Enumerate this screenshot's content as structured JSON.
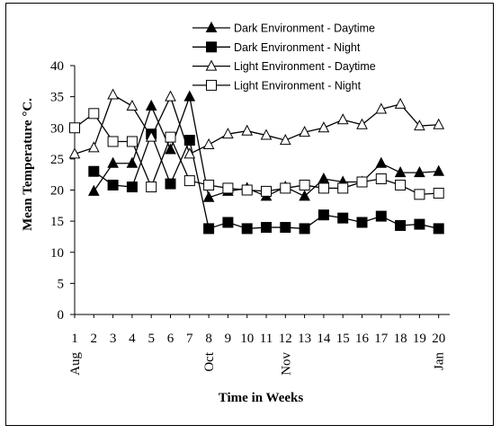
{
  "chart_data": {
    "type": "line",
    "xlabel": "Time in Weeks",
    "ylabel": "Mean Temperature °C.",
    "ylim": [
      0,
      40
    ],
    "yticks": [
      "0",
      "5",
      "10",
      "15",
      "20",
      "25",
      "30",
      "35",
      "40"
    ],
    "x": [
      1,
      2,
      3,
      4,
      5,
      6,
      7,
      8,
      9,
      10,
      11,
      12,
      13,
      14,
      15,
      16,
      17,
      18,
      19,
      20
    ],
    "xtick_labels": [
      "1",
      "2",
      "3",
      "4",
      "5",
      "6",
      "7",
      "8",
      "9",
      "10",
      "11",
      "12",
      "13",
      "14",
      "15",
      "16",
      "17",
      "18",
      "19",
      "20"
    ],
    "month_labels": [
      {
        "week": 1,
        "label": "Aug"
      },
      {
        "week": 8,
        "label": "Oct"
      },
      {
        "week": 12,
        "label": "Nov"
      },
      {
        "week": 20,
        "label": "Jan"
      }
    ],
    "grid": false,
    "legend_position": "top-right",
    "series": [
      {
        "name": "Dark Environment - Daytime",
        "marker": "filled-triangle",
        "values": [
          null,
          19.8,
          24.3,
          24.3,
          33.5,
          26.5,
          35,
          18.8,
          19.8,
          20.3,
          19,
          20.5,
          19,
          21.8,
          21.3,
          21.3,
          24.3,
          22.8,
          22.8,
          23
        ]
      },
      {
        "name": "Dark Environment - Night",
        "marker": "filled-square",
        "values": [
          null,
          23,
          20.8,
          20.5,
          29,
          21,
          28,
          13.8,
          14.8,
          13.8,
          14,
          14,
          13.8,
          16,
          15.5,
          14.8,
          15.8,
          14.3,
          14.5,
          13.8
        ]
      },
      {
        "name": "Light Environment - Daytime",
        "marker": "open-triangle",
        "values": [
          25.8,
          26.8,
          35.3,
          33.5,
          28.5,
          35,
          25.8,
          27.3,
          29,
          29.5,
          28.8,
          28,
          29.3,
          30,
          31.3,
          30.5,
          33,
          33.8,
          30.3,
          30.5
        ]
      },
      {
        "name": "Light Environment - Night",
        "marker": "open-square",
        "values": [
          30,
          32.3,
          27.8,
          27.8,
          20.5,
          28.5,
          21.5,
          20.8,
          20.3,
          20,
          19.8,
          20.3,
          20.8,
          20.3,
          20.3,
          21.3,
          21.8,
          20.8,
          19.3,
          19.5
        ]
      }
    ],
    "colors": {
      "line": "#000000",
      "marker_fill_open": "#ffffff",
      "marker_fill_solid": "#000000"
    }
  }
}
